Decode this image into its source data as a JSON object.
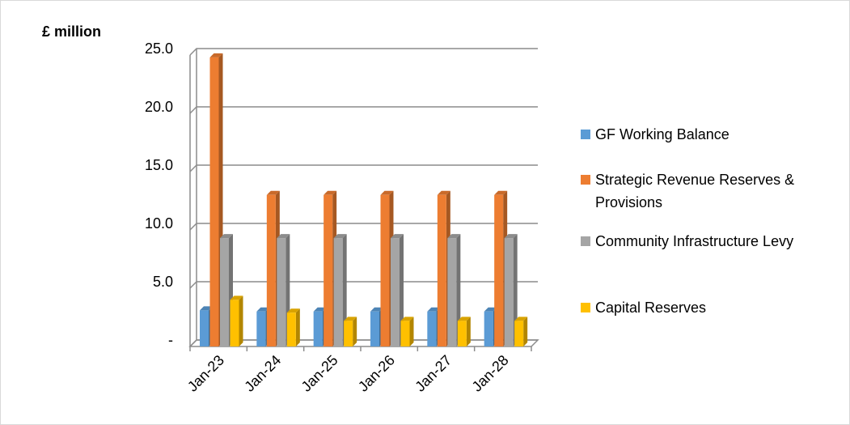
{
  "chart_data": {
    "type": "bar3d",
    "y_label": "£ million",
    "categories": [
      "Jan-23",
      "Jan-24",
      "Jan-25",
      "Jan-26",
      "Jan-27",
      "Jan-28"
    ],
    "series": [
      {
        "name": "GF Working Balance",
        "color": "#5b9bd5",
        "values": [
          3.1,
          3.0,
          3.0,
          3.0,
          3.0,
          3.0
        ]
      },
      {
        "name": "Strategic Revenue Reserves & Provisions",
        "color": "#ed7d31",
        "values": [
          24.8,
          13.0,
          13.0,
          13.0,
          13.0,
          13.0
        ]
      },
      {
        "name": "Community Infrastructure Levy",
        "color": "#a5a5a5",
        "values": [
          9.3,
          9.3,
          9.3,
          9.3,
          9.3,
          9.3
        ]
      },
      {
        "name": "Capital Reserves",
        "color": "#ffc000",
        "values": [
          4.0,
          2.9,
          2.2,
          2.2,
          2.2,
          2.2
        ]
      }
    ],
    "ylim": [
      0,
      25
    ],
    "yticks": [
      {
        "value": 0,
        "label": "-"
      },
      {
        "value": 5,
        "label": "5.0"
      },
      {
        "value": 10,
        "label": "10.0"
      },
      {
        "value": 15,
        "label": "15.0"
      },
      {
        "value": 20,
        "label": "20.0"
      },
      {
        "value": 25,
        "label": "25.0"
      }
    ],
    "grid": true,
    "legend": "right"
  }
}
